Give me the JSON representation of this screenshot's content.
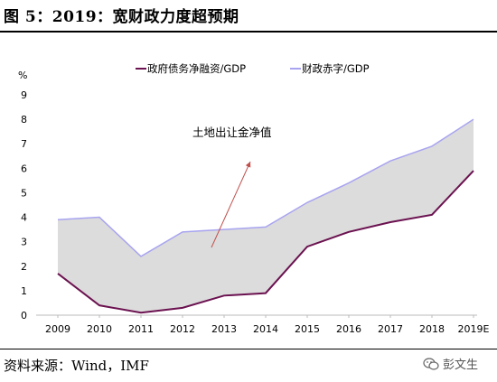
{
  "figure_title": "图 5：2019：宽财政力度超预期",
  "source_text": "资料来源：Wind，IMF",
  "watermark_text": "彭文生",
  "chart_data": {
    "type": "area",
    "title": "",
    "xlabel": "",
    "ylabel": "%",
    "categories": [
      "2009",
      "2010",
      "2011",
      "2012",
      "2013",
      "2014",
      "2015",
      "2016",
      "2017",
      "2018",
      "2019E"
    ],
    "ylim": [
      0,
      9
    ],
    "yticks": [
      "0",
      "1",
      "2",
      "3",
      "4",
      "5",
      "6",
      "7",
      "8",
      "9"
    ],
    "grid": false,
    "legend_position": "top",
    "series": [
      {
        "name": "政府债务净融资/GDP",
        "color": "#6b1250",
        "values": [
          1.7,
          0.4,
          0.1,
          0.3,
          0.8,
          0.9,
          2.8,
          3.4,
          3.8,
          4.1,
          5.9
        ]
      },
      {
        "name": "财政赤字/GDP",
        "color": "#a8a4f0",
        "values": [
          3.9,
          4.0,
          2.4,
          3.4,
          3.5,
          3.6,
          4.6,
          5.4,
          6.3,
          6.9,
          8.0
        ]
      }
    ],
    "fill_color": "#dcdcdc",
    "annotation": {
      "text": "土地出让金净值",
      "arrow_color": "#c0504d"
    }
  }
}
